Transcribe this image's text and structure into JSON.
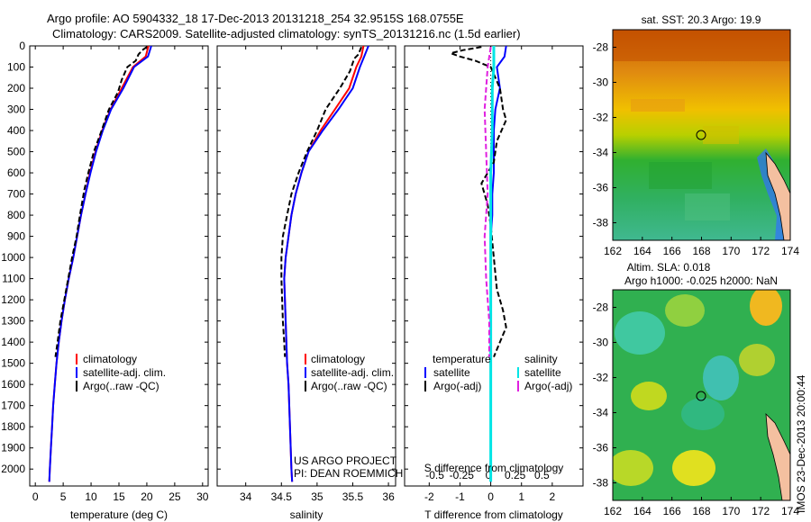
{
  "header": {
    "line1": "Argo profile: AO 5904332_18 17-Dec-2013 20131218_254 32.9515S 168.0755E",
    "line2": "Climatology: CARS2009. Satellite-adjusted climatology: synTS_20131216.nc (1.5d earlier)"
  },
  "colors": {
    "climatology": "#ff0000",
    "satellite": "#0000ff",
    "argo": "#000000",
    "sal_sat": "#00e5e5",
    "sal_argo": "#e020e0"
  },
  "legend_profile": [
    {
      "label": "climatology",
      "color": "#ff0000"
    },
    {
      "label": "satellite-adj. clim.",
      "color": "#0000ff"
    },
    {
      "label": "Argo(..raw -QC)",
      "color": "#000000"
    }
  ],
  "legend_diff_temp": {
    "title": "temperature",
    "items": [
      {
        "label": "satellite",
        "color": "#0000ff"
      },
      {
        "label": "Argo(-adj)",
        "color": "#000000"
      }
    ]
  },
  "legend_diff_sal": {
    "title": "salinity",
    "items": [
      {
        "label": "satellite",
        "color": "#00e5e5"
      },
      {
        "label": "Argo(-adj)",
        "color": "#e020e0"
      }
    ]
  },
  "credit": {
    "line1": "US ARGO PROJECT",
    "line2": "PI: DEAN ROEMMICH"
  },
  "sst_title": "sat. SST: 20.3 Argo: 19.9",
  "sla_title1": "Altim. SLA: 0.018",
  "sla_title2": "Argo h1000: -0.025 h2000: NaN",
  "timestamp": "IMOS 23-Dec-2013 20:00:44",
  "chart_data": [
    {
      "type": "line",
      "xlabel": "temperature (deg C)",
      "xlim": [
        -1,
        31
      ],
      "xticks": [
        0,
        5,
        10,
        15,
        20,
        25,
        30
      ],
      "ylim": [
        2080,
        0
      ],
      "yticks": [
        0,
        100,
        200,
        300,
        400,
        500,
        600,
        700,
        800,
        900,
        1000,
        1100,
        1200,
        1300,
        1400,
        1500,
        1600,
        1700,
        1800,
        1900,
        2000
      ],
      "series": [
        {
          "name": "climatology",
          "color": "#ff0000",
          "points": [
            [
              20.3,
              0
            ],
            [
              19.8,
              50
            ],
            [
              17.5,
              100
            ],
            [
              15.5,
              200
            ],
            [
              13.5,
              300
            ],
            [
              12,
              400
            ],
            [
              10.8,
              500
            ],
            [
              9.8,
              600
            ],
            [
              9.0,
              700
            ],
            [
              8.2,
              800
            ],
            [
              7.5,
              900
            ],
            [
              6.8,
              1000
            ],
            [
              6.0,
              1100
            ],
            [
              5.3,
              1200
            ],
            [
              4.7,
              1300
            ],
            [
              4.2,
              1400
            ],
            [
              3.8,
              1500
            ],
            [
              3.5,
              1600
            ],
            [
              3.2,
              1700
            ],
            [
              3.0,
              1800
            ],
            [
              2.8,
              1900
            ],
            [
              2.6,
              2000
            ],
            [
              2.5,
              2060
            ]
          ]
        },
        {
          "name": "satellite-adj. clim.",
          "color": "#0000ff",
          "points": [
            [
              20.8,
              0
            ],
            [
              20.2,
              50
            ],
            [
              17.7,
              100
            ],
            [
              15.8,
              200
            ],
            [
              13.6,
              300
            ],
            [
              12.1,
              400
            ],
            [
              10.9,
              500
            ],
            [
              9.9,
              600
            ],
            [
              9.0,
              700
            ],
            [
              8.2,
              800
            ],
            [
              7.5,
              900
            ],
            [
              6.8,
              1000
            ],
            [
              6.0,
              1100
            ],
            [
              5.3,
              1200
            ],
            [
              4.7,
              1300
            ],
            [
              4.2,
              1400
            ],
            [
              3.8,
              1500
            ],
            [
              3.5,
              1600
            ],
            [
              3.2,
              1700
            ],
            [
              3.0,
              1800
            ],
            [
              2.8,
              1900
            ],
            [
              2.6,
              2000
            ],
            [
              2.5,
              2060
            ]
          ]
        },
        {
          "name": "Argo(..raw -QC)",
          "color": "#000000",
          "points": [
            [
              20.0,
              5
            ],
            [
              19.2,
              20
            ],
            [
              18.5,
              40
            ],
            [
              18.0,
              70
            ],
            [
              16.5,
              100
            ],
            [
              15.5,
              160
            ],
            [
              14.8,
              220
            ],
            [
              13.2,
              300
            ],
            [
              11.9,
              400
            ],
            [
              10.5,
              500
            ],
            [
              9.5,
              600
            ],
            [
              8.8,
              680
            ],
            [
              8.0,
              800
            ],
            [
              7.4,
              900
            ],
            [
              6.6,
              1000
            ],
            [
              5.9,
              1100
            ],
            [
              5.2,
              1200
            ],
            [
              4.5,
              1300
            ],
            [
              4.0,
              1400
            ],
            [
              3.6,
              1470
            ]
          ]
        }
      ]
    },
    {
      "type": "line",
      "xlabel": "salinity",
      "xlim": [
        33.6,
        36.1
      ],
      "xticks": [
        34,
        34.5,
        35,
        35.5,
        36
      ],
      "ylim": [
        2080,
        0
      ],
      "series": [
        {
          "name": "climatology",
          "color": "#ff0000",
          "points": [
            [
              35.65,
              0
            ],
            [
              35.62,
              50
            ],
            [
              35.55,
              100
            ],
            [
              35.45,
              200
            ],
            [
              35.25,
              300
            ],
            [
              35.05,
              400
            ],
            [
              34.88,
              500
            ],
            [
              34.78,
              600
            ],
            [
              34.7,
              700
            ],
            [
              34.64,
              800
            ],
            [
              34.6,
              900
            ],
            [
              34.56,
              1000
            ],
            [
              34.54,
              1100
            ],
            [
              34.55,
              1200
            ],
            [
              34.56,
              1300
            ],
            [
              34.57,
              1400
            ],
            [
              34.58,
              1500
            ],
            [
              34.6,
              1600
            ],
            [
              34.61,
              1700
            ],
            [
              34.62,
              1800
            ],
            [
              34.63,
              1900
            ],
            [
              34.64,
              2000
            ],
            [
              34.65,
              2060
            ]
          ]
        },
        {
          "name": "satellite-adj. clim.",
          "color": "#0000ff",
          "points": [
            [
              35.72,
              0
            ],
            [
              35.66,
              50
            ],
            [
              35.6,
              100
            ],
            [
              35.5,
              200
            ],
            [
              35.3,
              300
            ],
            [
              35.08,
              400
            ],
            [
              34.88,
              500
            ],
            [
              34.78,
              600
            ],
            [
              34.7,
              700
            ],
            [
              34.64,
              800
            ],
            [
              34.6,
              900
            ],
            [
              34.56,
              1000
            ],
            [
              34.54,
              1100
            ],
            [
              34.55,
              1200
            ],
            [
              34.56,
              1300
            ],
            [
              34.57,
              1400
            ],
            [
              34.58,
              1500
            ],
            [
              34.6,
              1600
            ],
            [
              34.61,
              1700
            ],
            [
              34.62,
              1800
            ],
            [
              34.63,
              1900
            ],
            [
              34.64,
              2000
            ],
            [
              34.65,
              2060
            ]
          ]
        },
        {
          "name": "Argo(..raw -QC)",
          "color": "#000000",
          "points": [
            [
              35.62,
              5
            ],
            [
              35.58,
              40
            ],
            [
              35.52,
              60
            ],
            [
              35.46,
              120
            ],
            [
              35.32,
              200
            ],
            [
              35.12,
              300
            ],
            [
              35.0,
              400
            ],
            [
              34.86,
              500
            ],
            [
              34.74,
              600
            ],
            [
              34.64,
              700
            ],
            [
              34.58,
              800
            ],
            [
              34.52,
              900
            ],
            [
              34.5,
              1000
            ],
            [
              34.5,
              1100
            ],
            [
              34.51,
              1200
            ],
            [
              34.52,
              1300
            ],
            [
              34.54,
              1400
            ],
            [
              34.55,
              1470
            ]
          ]
        }
      ]
    },
    {
      "type": "line",
      "xlabel": "T difference from climatology",
      "xlabel_top": "S difference from climatology",
      "xlim": [
        -2.8,
        3.0
      ],
      "xticks": [
        -2,
        -1,
        0,
        1,
        2
      ],
      "xticks_top": [
        "-0.5",
        "-0.25",
        "0",
        "0.25",
        "0.5"
      ],
      "ylim": [
        2080,
        0
      ],
      "series": [
        {
          "name": "temperature satellite",
          "color": "#0000ff",
          "points": [
            [
              0.5,
              0
            ],
            [
              0.45,
              50
            ],
            [
              0.2,
              100
            ],
            [
              0.3,
              200
            ],
            [
              0.15,
              300
            ],
            [
              0.1,
              400
            ],
            [
              0.1,
              500
            ],
            [
              0.1,
              600
            ],
            [
              0.05,
              700
            ],
            [
              0.05,
              800
            ],
            [
              0,
              900
            ],
            [
              0,
              1000
            ],
            [
              0,
              1100
            ],
            [
              0,
              1200
            ],
            [
              0,
              1300
            ],
            [
              0,
              1400
            ],
            [
              0,
              1600
            ],
            [
              0,
              1800
            ],
            [
              0,
              2000
            ],
            [
              0,
              2060
            ]
          ]
        },
        {
          "name": "temperature Argo(-adj)",
          "color": "#000000",
          "points": [
            [
              -0.3,
              5
            ],
            [
              -0.9,
              20
            ],
            [
              -1.3,
              35
            ],
            [
              -1.0,
              50
            ],
            [
              -0.5,
              70
            ],
            [
              0,
              100
            ],
            [
              0.3,
              200
            ],
            [
              0.4,
              300
            ],
            [
              0.5,
              350
            ],
            [
              0.2,
              450
            ],
            [
              0.1,
              550
            ],
            [
              -0.3,
              650
            ],
            [
              -0.1,
              750
            ],
            [
              0,
              850
            ],
            [
              0.1,
              1000
            ],
            [
              0.2,
              1150
            ],
            [
              0.4,
              1250
            ],
            [
              0.5,
              1330
            ],
            [
              0.3,
              1400
            ],
            [
              0.1,
              1470
            ]
          ]
        },
        {
          "name": "salinity satellite",
          "color": "#00e5e5",
          "points": [
            [
              0.1,
              0
            ],
            [
              0.1,
              100
            ],
            [
              0.05,
              200
            ],
            [
              0.05,
              400
            ],
            [
              0,
              600
            ],
            [
              0,
              800
            ],
            [
              0,
              1000
            ],
            [
              0,
              1200
            ],
            [
              0,
              1400
            ],
            [
              0,
              1600
            ],
            [
              0,
              1800
            ],
            [
              0,
              2000
            ],
            [
              0,
              2060
            ]
          ]
        },
        {
          "name": "salinity Argo(-adj)",
          "color": "#e020e0",
          "points": [
            [
              0,
              5
            ],
            [
              -0.1,
              100
            ],
            [
              -0.2,
              300
            ],
            [
              -0.15,
              500
            ],
            [
              -0.1,
              700
            ],
            [
              -0.2,
              900
            ],
            [
              -0.15,
              1100
            ],
            [
              -0.05,
              1300
            ],
            [
              -0.05,
              1470
            ]
          ]
        }
      ]
    },
    {
      "type": "heatmap",
      "title": "sat. SST: 20.3 Argo: 19.9",
      "xlim": [
        162,
        174
      ],
      "ylim": [
        -39,
        -27
      ],
      "xticks": [
        162,
        164,
        166,
        168,
        170,
        172,
        174
      ],
      "yticks": [
        -28,
        -30,
        -32,
        -34,
        -36,
        -38
      ],
      "marker": {
        "lon": 168.08,
        "lat": -32.95
      }
    },
    {
      "type": "heatmap",
      "title": "Altim. SLA: 0.018",
      "xlim": [
        162,
        174
      ],
      "ylim": [
        -39,
        -27
      ],
      "xticks": [
        162,
        164,
        166,
        168,
        170,
        172,
        174
      ],
      "yticks": [
        -28,
        -30,
        -32,
        -34,
        -36,
        -38
      ],
      "marker": {
        "lon": 168.08,
        "lat": -32.95
      }
    }
  ]
}
